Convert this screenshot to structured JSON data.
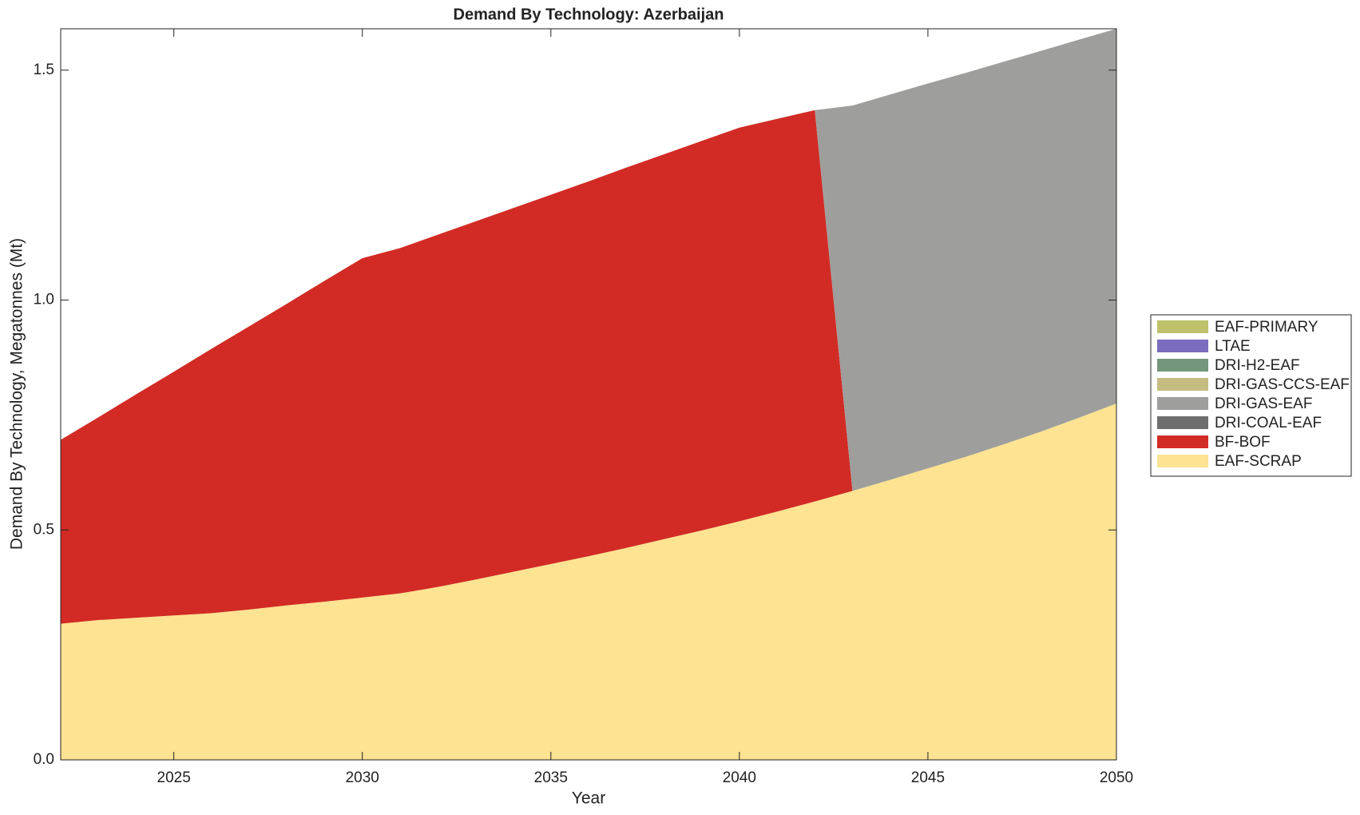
{
  "chart_data": {
    "type": "stacked_area",
    "title": "Demand By Technology: Azerbaijan",
    "xlabel": "Year",
    "ylabel": "Demand By Technology, Megatonnes (Mt)",
    "x": [
      2022,
      2023,
      2024,
      2025,
      2026,
      2027,
      2028,
      2029,
      2030,
      2031,
      2032,
      2033,
      2034,
      2035,
      2036,
      2037,
      2038,
      2039,
      2040,
      2041,
      2042,
      2043,
      2044,
      2045,
      2046,
      2047,
      2048,
      2049,
      2050
    ],
    "xlim": [
      2022,
      2050
    ],
    "xticks": [
      2025,
      2030,
      2035,
      2040,
      2045,
      2050
    ],
    "ylim": [
      0,
      1.59
    ],
    "yticks": [
      {
        "value": 0,
        "label": "0.0"
      },
      0.5,
      {
        "value": 1,
        "label": "1.0"
      },
      1.5
    ],
    "legend": "right",
    "series": [
      {
        "name": "EAF-SCRAP",
        "color": "#fde392",
        "values": [
          0.296,
          0.304,
          0.309,
          0.314,
          0.319,
          0.327,
          0.336,
          0.344,
          0.353,
          0.362,
          0.376,
          0.392,
          0.409,
          0.426,
          0.443,
          0.461,
          0.48,
          0.499,
          0.519,
          0.54,
          0.562,
          0.585,
          0.609,
          0.634,
          0.659,
          0.686,
          0.714,
          0.744,
          0.775
        ]
      },
      {
        "name": "BF-BOF",
        "color": "#d22b25",
        "values": [
          0.4,
          0.441,
          0.486,
          0.53,
          0.575,
          0.616,
          0.656,
          0.698,
          0.738,
          0.751,
          0.766,
          0.779,
          0.791,
          0.803,
          0.815,
          0.827,
          0.837,
          0.847,
          0.856,
          0.854,
          0.851,
          0,
          0,
          0,
          0,
          0,
          0,
          0,
          0
        ]
      },
      {
        "name": "DRI-COAL-EAF",
        "color": "#6e6e6e",
        "values": [
          0,
          0,
          0,
          0,
          0,
          0,
          0,
          0,
          0,
          0,
          0,
          0,
          0,
          0,
          0,
          0,
          0,
          0,
          0,
          0,
          0,
          0,
          0,
          0,
          0,
          0,
          0,
          0,
          0
        ]
      },
      {
        "name": "DRI-GAS-EAF",
        "color": "#9e9e9c",
        "values": [
          0,
          0,
          0,
          0,
          0,
          0,
          0,
          0,
          0,
          0,
          0,
          0,
          0,
          0,
          0,
          0,
          0,
          0,
          0,
          0,
          0,
          0.838,
          0.838,
          0.837,
          0.835,
          0.832,
          0.828,
          0.822,
          0.815
        ]
      },
      {
        "name": "DRI-GAS-CCS-EAF",
        "color": "#c5bc82",
        "values": [
          0,
          0,
          0,
          0,
          0,
          0,
          0,
          0,
          0,
          0,
          0,
          0,
          0,
          0,
          0,
          0,
          0,
          0,
          0,
          0,
          0,
          0,
          0,
          0,
          0,
          0,
          0,
          0,
          0
        ]
      },
      {
        "name": "DRI-H2-EAF",
        "color": "#74977b",
        "values": [
          0,
          0,
          0,
          0,
          0,
          0,
          0,
          0,
          0,
          0,
          0,
          0,
          0,
          0,
          0,
          0,
          0,
          0,
          0,
          0,
          0,
          0,
          0,
          0,
          0,
          0,
          0,
          0,
          0
        ]
      },
      {
        "name": "LTAE",
        "color": "#7b6cc0",
        "values": [
          0,
          0,
          0,
          0,
          0,
          0,
          0,
          0,
          0,
          0,
          0,
          0,
          0,
          0,
          0,
          0,
          0,
          0,
          0,
          0,
          0,
          0,
          0,
          0,
          0,
          0,
          0,
          0,
          0
        ]
      },
      {
        "name": "EAF-PRIMARY",
        "color": "#bfc26a",
        "values": [
          0,
          0,
          0,
          0,
          0,
          0,
          0,
          0,
          0,
          0,
          0,
          0,
          0,
          0,
          0,
          0,
          0,
          0,
          0,
          0,
          0,
          0,
          0,
          0,
          0,
          0,
          0,
          0,
          0
        ]
      }
    ]
  }
}
